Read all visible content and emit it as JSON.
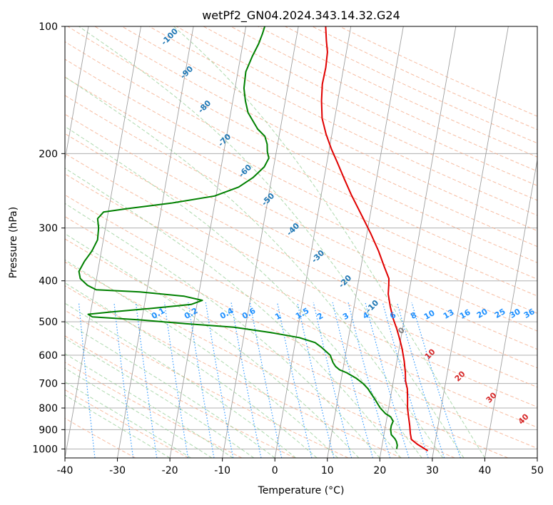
{
  "chart_data": {
    "type": "line",
    "chart_kind": "skew-T log-P",
    "title": "wetPf2_GN04.2024.343.14.32.G24",
    "xlabel": "Temperature (°C)",
    "ylabel": "Pressure (hPa)",
    "xlim": [
      -40,
      50
    ],
    "ylim_hpa": [
      1050,
      100
    ],
    "y_scale": "log",
    "grid": true,
    "x_ticks": [
      -40,
      -30,
      -20,
      -10,
      0,
      10,
      20,
      30,
      40,
      50
    ],
    "y_ticks": [
      100,
      200,
      300,
      400,
      500,
      600,
      700,
      800,
      900,
      1000
    ],
    "series": [
      {
        "color": "#e00000",
        "points": [
          {
            "p": 1010,
            "t": 28.9
          },
          {
            "p": 975,
            "t": 26.7
          },
          {
            "p": 950,
            "t": 25.4
          },
          {
            "p": 920,
            "t": 25.0
          },
          {
            "p": 880,
            "t": 24.6
          },
          {
            "p": 840,
            "t": 24.1
          },
          {
            "p": 800,
            "t": 23.6
          },
          {
            "p": 760,
            "t": 23.3
          },
          {
            "p": 720,
            "t": 22.9
          },
          {
            "p": 690,
            "t": 22.3
          },
          {
            "p": 660,
            "t": 22.0
          },
          {
            "p": 620,
            "t": 21.4
          },
          {
            "p": 580,
            "t": 20.6
          },
          {
            "p": 550,
            "t": 19.8
          },
          {
            "p": 520,
            "t": 18.9
          },
          {
            "p": 490,
            "t": 17.8
          },
          {
            "p": 460,
            "t": 16.9
          },
          {
            "p": 430,
            "t": 16.1
          },
          {
            "p": 410,
            "t": 15.9
          },
          {
            "p": 395,
            "t": 15.7
          },
          {
            "p": 370,
            "t": 14.4
          },
          {
            "p": 340,
            "t": 12.8
          },
          {
            "p": 310,
            "t": 10.8
          },
          {
            "p": 280,
            "t": 8.4
          },
          {
            "p": 250,
            "t": 5.7
          },
          {
            "p": 230,
            "t": 3.9
          },
          {
            "p": 210,
            "t": 2.0
          },
          {
            "p": 195,
            "t": 0.4
          },
          {
            "p": 180,
            "t": -1.1
          },
          {
            "p": 165,
            "t": -2.4
          },
          {
            "p": 150,
            "t": -3.1
          },
          {
            "p": 137,
            "t": -3.5
          },
          {
            "p": 125,
            "t": -3.4
          },
          {
            "p": 115,
            "t": -3.6
          },
          {
            "p": 108,
            "t": -4.2
          },
          {
            "p": 100,
            "t": -4.8
          }
        ]
      },
      {
        "color": "#008000",
        "points": [
          {
            "p": 1000,
            "t": 22.9
          },
          {
            "p": 980,
            "t": 22.9
          },
          {
            "p": 960,
            "t": 22.6
          },
          {
            "p": 945,
            "t": 22.2
          },
          {
            "p": 925,
            "t": 21.4
          },
          {
            "p": 900,
            "t": 21.1
          },
          {
            "p": 880,
            "t": 21.1
          },
          {
            "p": 860,
            "t": 21.3
          },
          {
            "p": 840,
            "t": 20.7
          },
          {
            "p": 825,
            "t": 19.6
          },
          {
            "p": 800,
            "t": 18.4
          },
          {
            "p": 780,
            "t": 17.7
          },
          {
            "p": 760,
            "t": 17.0
          },
          {
            "p": 740,
            "t": 16.2
          },
          {
            "p": 720,
            "t": 15.4
          },
          {
            "p": 700,
            "t": 14.3
          },
          {
            "p": 680,
            "t": 12.8
          },
          {
            "p": 660,
            "t": 10.8
          },
          {
            "p": 650,
            "t": 9.4
          },
          {
            "p": 638,
            "t": 8.5
          },
          {
            "p": 625,
            "t": 7.9
          },
          {
            "p": 600,
            "t": 7.1
          },
          {
            "p": 575,
            "t": 5.2
          },
          {
            "p": 560,
            "t": 3.8
          },
          {
            "p": 545,
            "t": 0.6
          },
          {
            "p": 530,
            "t": -5.1
          },
          {
            "p": 515,
            "t": -12.2
          },
          {
            "p": 505,
            "t": -21.6
          },
          {
            "p": 495,
            "t": -30.3
          },
          {
            "p": 487,
            "t": -39.5
          },
          {
            "p": 480,
            "t": -40.4
          },
          {
            "p": 474,
            "t": -36.1
          },
          {
            "p": 465,
            "t": -28.6
          },
          {
            "p": 455,
            "t": -21.1
          },
          {
            "p": 445,
            "t": -19.1
          },
          {
            "p": 435,
            "t": -22.7
          },
          {
            "p": 425,
            "t": -31.3
          },
          {
            "p": 420,
            "t": -39.7
          },
          {
            "p": 410,
            "t": -41.5
          },
          {
            "p": 395,
            "t": -43.1
          },
          {
            "p": 380,
            "t": -43.6
          },
          {
            "p": 360,
            "t": -42.9
          },
          {
            "p": 340,
            "t": -41.8
          },
          {
            "p": 320,
            "t": -41.1
          },
          {
            "p": 300,
            "t": -41.3
          },
          {
            "p": 285,
            "t": -41.8
          },
          {
            "p": 275,
            "t": -40.9
          },
          {
            "p": 270,
            "t": -36.6
          },
          {
            "p": 262,
            "t": -28.3
          },
          {
            "p": 252,
            "t": -20.3
          },
          {
            "p": 240,
            "t": -16.0
          },
          {
            "p": 228,
            "t": -13.6
          },
          {
            "p": 215,
            "t": -11.8
          },
          {
            "p": 205,
            "t": -11.2
          },
          {
            "p": 198,
            "t": -11.7
          },
          {
            "p": 190,
            "t": -12.0
          },
          {
            "p": 182,
            "t": -12.7
          },
          {
            "p": 175,
            "t": -14.3
          },
          {
            "p": 168,
            "t": -15.4
          },
          {
            "p": 160,
            "t": -16.7
          },
          {
            "p": 150,
            "t": -17.6
          },
          {
            "p": 140,
            "t": -18.3
          },
          {
            "p": 128,
            "t": -18.5
          },
          {
            "p": 118,
            "t": -17.8
          },
          {
            "p": 110,
            "t": -17.0
          },
          {
            "p": 104,
            "t": -16.6
          },
          {
            "p": 100,
            "t": -16.4
          }
        ]
      }
    ],
    "isotherm_labels": [
      -100,
      -90,
      -80,
      -70,
      -60,
      -50,
      -40,
      -30,
      -20,
      -10
    ],
    "isotherm_label_color": "#1f77b4",
    "mixing_ratio_labels": [
      "0.1",
      "0.2",
      "0.4",
      "0.6",
      "1",
      "1.5",
      "2",
      "3",
      "4",
      "6",
      "8",
      "10",
      "13",
      "16",
      "20",
      "25",
      "30",
      "36"
    ],
    "mixing_ratio_label_color": "#1e90ff",
    "dry_adiabat_labels": [
      "0",
      "10",
      "20",
      "30",
      "40"
    ],
    "dry_adiabat_label_colors": [
      "#808080",
      "#d62728",
      "#d62728",
      "#d62728",
      "#d62728"
    ],
    "reference_line_colors": {
      "isotherm": "#a0a0a0",
      "dry_adiabat": "#f4a582",
      "moist_adiabat": "#98d098",
      "mixing_ratio": "#1e90ff"
    }
  }
}
